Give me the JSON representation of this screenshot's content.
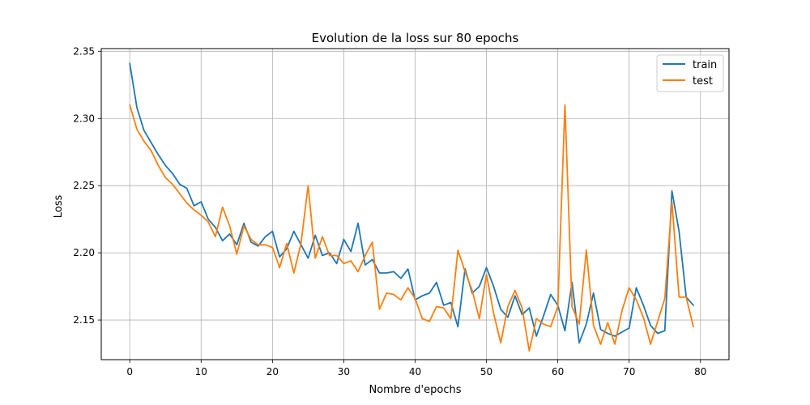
{
  "chart_data": {
    "type": "line",
    "title": "Evolution de la loss sur 80 epochs",
    "xlabel": "Nombre d'epochs",
    "ylabel": "Loss",
    "xlim": [
      -4,
      84
    ],
    "ylim": [
      2.1205,
      2.352
    ],
    "xticks": [
      0,
      10,
      20,
      30,
      40,
      50,
      60,
      70,
      80
    ],
    "xtick_labels": [
      "0",
      "10",
      "20",
      "30",
      "40",
      "50",
      "60",
      "70",
      "80"
    ],
    "yticks": [
      2.15,
      2.2,
      2.25,
      2.3,
      2.35
    ],
    "ytick_labels": [
      "2.15",
      "2.20",
      "2.25",
      "2.30",
      "2.35"
    ],
    "grid": true,
    "legend_position": "top-right",
    "x": [
      0,
      1,
      2,
      3,
      4,
      5,
      6,
      7,
      8,
      9,
      10,
      11,
      12,
      13,
      14,
      15,
      16,
      17,
      18,
      19,
      20,
      21,
      22,
      23,
      24,
      25,
      26,
      27,
      28,
      29,
      30,
      31,
      32,
      33,
      34,
      35,
      36,
      37,
      38,
      39,
      40,
      41,
      42,
      43,
      44,
      45,
      46,
      47,
      48,
      49,
      50,
      51,
      52,
      53,
      54,
      55,
      56,
      57,
      58,
      59,
      60,
      61,
      62,
      63,
      64,
      65,
      66,
      67,
      68,
      69,
      70,
      71,
      72,
      73,
      74,
      75,
      76,
      77,
      78,
      79
    ],
    "series": [
      {
        "name": "train",
        "color": "#1f77b4",
        "values": [
          2.341,
          2.308,
          2.291,
          2.282,
          2.273,
          2.265,
          2.259,
          2.251,
          2.248,
          2.235,
          2.238,
          2.225,
          2.219,
          2.209,
          2.214,
          2.206,
          2.222,
          2.208,
          2.205,
          2.212,
          2.216,
          2.197,
          2.203,
          2.216,
          2.206,
          2.196,
          2.213,
          2.198,
          2.2,
          2.192,
          2.21,
          2.201,
          2.222,
          2.191,
          2.195,
          2.185,
          2.185,
          2.186,
          2.181,
          2.188,
          2.165,
          2.168,
          2.17,
          2.178,
          2.161,
          2.163,
          2.145,
          2.188,
          2.17,
          2.175,
          2.189,
          2.175,
          2.158,
          2.152,
          2.168,
          2.154,
          2.159,
          2.138,
          2.153,
          2.169,
          2.161,
          2.142,
          2.178,
          2.133,
          2.147,
          2.17,
          2.143,
          2.14,
          2.138,
          2.141,
          2.144,
          2.174,
          2.161,
          2.146,
          2.14,
          2.142,
          2.246,
          2.216,
          2.167,
          2.161
        ]
      },
      {
        "name": "test",
        "color": "#ff7f0e",
        "values": [
          2.31,
          2.292,
          2.283,
          2.276,
          2.265,
          2.256,
          2.251,
          2.244,
          2.237,
          2.232,
          2.228,
          2.223,
          2.212,
          2.234,
          2.22,
          2.199,
          2.22,
          2.21,
          2.206,
          2.206,
          2.204,
          2.189,
          2.207,
          2.185,
          2.207,
          2.25,
          2.196,
          2.212,
          2.198,
          2.198,
          2.192,
          2.194,
          2.186,
          2.198,
          2.208,
          2.158,
          2.17,
          2.169,
          2.165,
          2.174,
          2.166,
          2.151,
          2.149,
          2.16,
          2.159,
          2.151,
          2.202,
          2.186,
          2.172,
          2.151,
          2.184,
          2.155,
          2.133,
          2.16,
          2.172,
          2.159,
          2.127,
          2.151,
          2.147,
          2.145,
          2.16,
          2.31,
          2.16,
          2.147,
          2.202,
          2.146,
          2.132,
          2.148,
          2.132,
          2.157,
          2.174,
          2.165,
          2.152,
          2.132,
          2.149,
          2.166,
          2.238,
          2.167,
          2.167,
          2.145
        ]
      }
    ]
  }
}
